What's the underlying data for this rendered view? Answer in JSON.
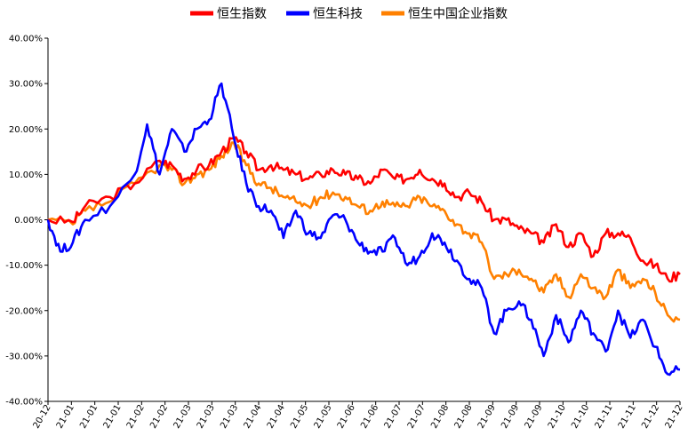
{
  "chart_data": {
    "type": "line",
    "yaxis": {
      "min": -40,
      "max": 40,
      "step": 10,
      "tick_labels": [
        "40.00%",
        "30.00%",
        "20.00%",
        "10.00%",
        "0.00%",
        "-10.00%",
        "-20.00%",
        "-30.00%",
        "-40.00%"
      ]
    },
    "x_tick_labels": [
      "20-12",
      "21-01",
      "21-01",
      "21-01",
      "21-02",
      "21-02",
      "21-03",
      "21-03",
      "21-03",
      "21-04",
      "21-04",
      "21-05",
      "21-05",
      "21-06",
      "21-06",
      "21-07",
      "21-07",
      "21-08",
      "21-08",
      "21-09",
      "21-09",
      "21-09",
      "21-10",
      "21-10",
      "21-11",
      "21-11",
      "21-12",
      "21-12"
    ],
    "legend_position": "top",
    "grid": false,
    "series": [
      {
        "name": "恒生指数",
        "color": "#ff0000",
        "points": [
          [
            0,
            0
          ],
          [
            2,
            -0.5
          ],
          [
            3,
            3
          ],
          [
            5,
            5
          ],
          [
            7,
            8
          ],
          [
            9,
            13
          ],
          [
            10,
            12
          ],
          [
            11,
            9
          ],
          [
            12,
            11
          ],
          [
            13,
            12
          ],
          [
            14,
            15
          ],
          [
            15,
            18
          ],
          [
            16,
            15
          ],
          [
            17,
            11
          ],
          [
            18,
            12
          ],
          [
            19,
            11
          ],
          [
            20,
            10
          ],
          [
            21,
            9
          ],
          [
            22,
            10
          ],
          [
            23,
            11
          ],
          [
            24,
            10
          ],
          [
            25,
            9
          ],
          [
            26,
            8
          ],
          [
            27,
            11
          ],
          [
            28,
            9
          ],
          [
            29,
            9
          ],
          [
            30,
            11
          ],
          [
            31,
            9
          ],
          [
            32,
            8
          ],
          [
            33,
            5
          ],
          [
            34,
            6
          ],
          [
            35,
            4
          ],
          [
            36,
            0
          ],
          [
            37,
            0
          ],
          [
            38,
            -2
          ],
          [
            39,
            -3
          ],
          [
            40,
            -5
          ],
          [
            41,
            -1
          ],
          [
            42,
            -6
          ],
          [
            43,
            -3
          ],
          [
            44,
            -8
          ],
          [
            45,
            -3
          ],
          [
            46,
            -3
          ],
          [
            47,
            -4
          ],
          [
            48,
            -9
          ],
          [
            49,
            -10
          ],
          [
            50,
            -13
          ],
          [
            51,
            -12
          ]
        ]
      },
      {
        "name": "恒生科技",
        "color": "#0000ff",
        "points": [
          [
            0,
            0
          ],
          [
            1,
            -7
          ],
          [
            2,
            -5
          ],
          [
            3,
            0
          ],
          [
            5,
            3
          ],
          [
            7,
            10
          ],
          [
            8,
            21
          ],
          [
            9,
            10
          ],
          [
            10,
            20
          ],
          [
            11,
            15
          ],
          [
            12,
            20
          ],
          [
            13,
            22
          ],
          [
            14,
            30
          ],
          [
            15,
            18
          ],
          [
            16,
            8
          ],
          [
            17,
            3
          ],
          [
            18,
            2
          ],
          [
            19,
            -4
          ],
          [
            20,
            2
          ],
          [
            21,
            -3
          ],
          [
            22,
            -4
          ],
          [
            23,
            1
          ],
          [
            24,
            0
          ],
          [
            25,
            -5
          ],
          [
            26,
            -7
          ],
          [
            27,
            -7
          ],
          [
            28,
            -4
          ],
          [
            29,
            -10
          ],
          [
            30,
            -8
          ],
          [
            31,
            -3
          ],
          [
            32,
            -5
          ],
          [
            33,
            -9
          ],
          [
            34,
            -13
          ],
          [
            35,
            -15
          ],
          [
            36,
            -25
          ],
          [
            37,
            -20
          ],
          [
            38,
            -18
          ],
          [
            39,
            -22
          ],
          [
            40,
            -30
          ],
          [
            41,
            -21
          ],
          [
            42,
            -27
          ],
          [
            43,
            -20
          ],
          [
            44,
            -25
          ],
          [
            45,
            -29
          ],
          [
            46,
            -20
          ],
          [
            47,
            -26
          ],
          [
            48,
            -22
          ],
          [
            49,
            -28
          ],
          [
            50,
            -34
          ],
          [
            51,
            -33
          ]
        ]
      },
      {
        "name": "恒生中国企业指数",
        "color": "#ff8000",
        "points": [
          [
            0,
            0
          ],
          [
            2,
            -1
          ],
          [
            3,
            2
          ],
          [
            5,
            4
          ],
          [
            7,
            8
          ],
          [
            9,
            12
          ],
          [
            10,
            11
          ],
          [
            11,
            8
          ],
          [
            12,
            10
          ],
          [
            13,
            11
          ],
          [
            14,
            14
          ],
          [
            15,
            17
          ],
          [
            16,
            12
          ],
          [
            17,
            8
          ],
          [
            18,
            7
          ],
          [
            19,
            5
          ],
          [
            20,
            4
          ],
          [
            21,
            3
          ],
          [
            22,
            5
          ],
          [
            23,
            6
          ],
          [
            24,
            5
          ],
          [
            25,
            3
          ],
          [
            26,
            2
          ],
          [
            27,
            4
          ],
          [
            28,
            3
          ],
          [
            29,
            3
          ],
          [
            30,
            5
          ],
          [
            31,
            3
          ],
          [
            32,
            2
          ],
          [
            33,
            -1
          ],
          [
            34,
            -3
          ],
          [
            35,
            -5
          ],
          [
            36,
            -13
          ],
          [
            37,
            -12
          ],
          [
            38,
            -11
          ],
          [
            39,
            -13
          ],
          [
            40,
            -16
          ],
          [
            41,
            -12
          ],
          [
            42,
            -17
          ],
          [
            43,
            -12
          ],
          [
            44,
            -15
          ],
          [
            45,
            -17
          ],
          [
            46,
            -11
          ],
          [
            47,
            -15
          ],
          [
            48,
            -13
          ],
          [
            49,
            -16
          ],
          [
            50,
            -21
          ],
          [
            51,
            -22
          ]
        ]
      }
    ]
  }
}
